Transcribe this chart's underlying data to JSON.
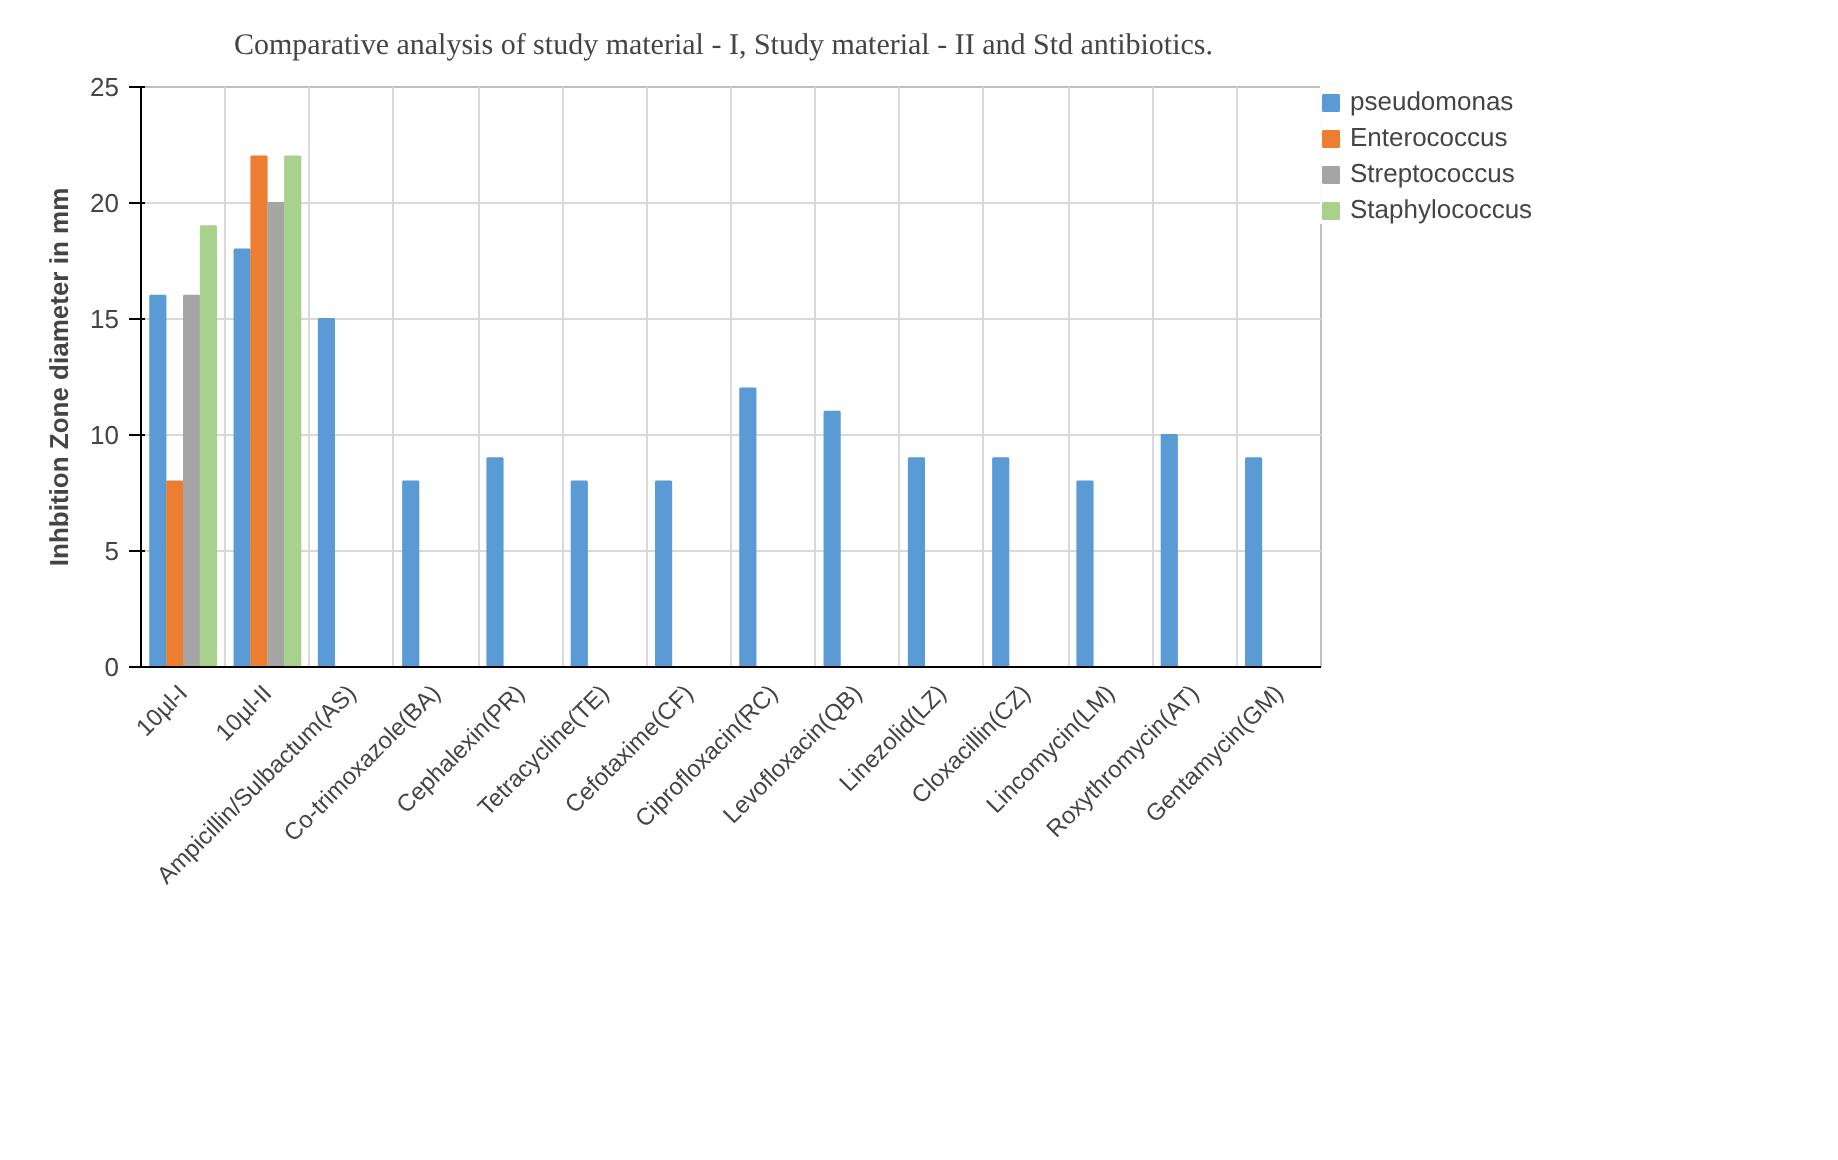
{
  "chart_data": {
    "type": "bar",
    "title": "Comparative analysis  of study material - I, Study material - II  and Std antibiotics.",
    "ylabel": "Inhbition Zone diameter in mm",
    "categories": [
      "10µl-I",
      "10µl-II",
      "Ampicillin/Sulbactum(AS)",
      "Co-trimoxazole(BA)",
      "Cephalexin(PR)",
      "Tetracycline(TE)",
      "Cefotaxime(CF)",
      "Ciprofloxacin(RC)",
      "Levofloxacin(QB)",
      "Linezolid(LZ)",
      "Cloxacillin(CZ)",
      "Lincomycin(LM)",
      "Roxythromycin(AT)",
      "Gentamycin(GM)"
    ],
    "series": [
      {
        "name": "pseudomonas",
        "color": "#5b9bd5",
        "values": [
          16,
          18,
          15,
          8,
          9,
          8,
          8,
          12,
          11,
          9,
          9,
          8,
          10,
          9
        ]
      },
      {
        "name": "Enterococcus",
        "color": "#ed7d31",
        "values": [
          8,
          22,
          null,
          null,
          null,
          null,
          null,
          null,
          null,
          null,
          null,
          null,
          null,
          null
        ]
      },
      {
        "name": "Streptococcus",
        "color": "#a5a5a5",
        "values": [
          16,
          20,
          null,
          null,
          null,
          null,
          null,
          null,
          null,
          null,
          null,
          null,
          null,
          null
        ]
      },
      {
        "name": "Staphylococcus",
        "color": "#a9d18e",
        "values": [
          19,
          22,
          null,
          null,
          null,
          null,
          null,
          null,
          null,
          null,
          null,
          null,
          null,
          null
        ]
      }
    ],
    "ylim": [
      0,
      25
    ],
    "yticks": [
      0,
      5,
      10,
      15,
      20,
      25
    ],
    "grid": true,
    "legend": "right"
  }
}
